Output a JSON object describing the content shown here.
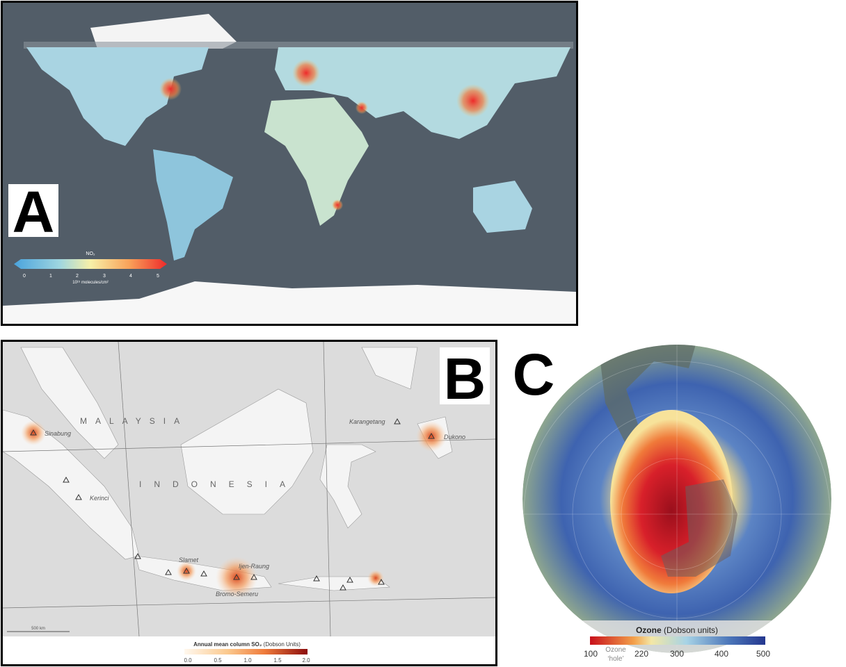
{
  "panel_a": {
    "label": "A",
    "legend": {
      "title": "NO₂",
      "ticks": [
        "0",
        "1",
        "2",
        "3",
        "4",
        "5"
      ],
      "unit": "10¹⁵ molecules/cm²"
    }
  },
  "panel_b": {
    "label": "B",
    "countries": [
      "MALAYSIA",
      "INDONESIA"
    ],
    "volcanoes": [
      "Sinabung",
      "Kerinci",
      "Slamet",
      "Ijen-Raung",
      "Bromo-Semeru",
      "Karangetang",
      "Dukono"
    ],
    "scale": "500 km",
    "legend": {
      "title": "Annual mean column SO₂",
      "unit": "(Dobson Units)",
      "ticks": [
        "0.0",
        "0.5",
        "1.0",
        "1.5",
        "2.0"
      ]
    }
  },
  "panel_c": {
    "label": "C",
    "legend": {
      "title": "Ozone",
      "unit": "(Dobson units)",
      "ticks": [
        "100",
        "220",
        "300",
        "400",
        "500"
      ],
      "note": [
        "Ozone",
        "‘hole’"
      ]
    }
  }
}
